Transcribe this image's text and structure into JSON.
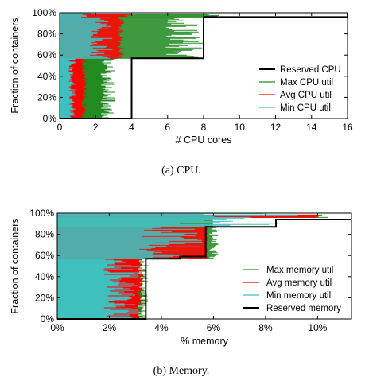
{
  "chart_data": [
    {
      "type": "line",
      "caption": "(a) CPU.",
      "xlabel": "# CPU cores",
      "ylabel": "Fraction of containers",
      "xlim": [
        0,
        16
      ],
      "ylim": [
        0,
        100
      ],
      "xticks": [
        0,
        2,
        4,
        6,
        8,
        10,
        12,
        14,
        16
      ],
      "xtick_labels": [
        "0",
        "2",
        "4",
        "6",
        "8",
        "10",
        "12",
        "14",
        "16"
      ],
      "yticks": [
        0,
        20,
        40,
        60,
        80,
        100
      ],
      "ytick_labels": [
        "0%",
        "20%",
        "40%",
        "60%",
        "80%",
        "100%"
      ],
      "legend_position": "lower-right",
      "legend": [
        "Reserved CPU",
        "Max CPU util",
        "Avg CPU util",
        "Min CPU util"
      ],
      "colors": {
        "reserved": "#000000",
        "max": "#228b22",
        "avg": "#ff0000",
        "min": "#40bfbf"
      },
      "series": [
        {
          "name": "Reserved CPU",
          "x": [
            0,
            4,
            4,
            8,
            8,
            16,
            16
          ],
          "y": [
            0,
            0,
            57,
            57,
            96,
            96,
            100
          ]
        },
        {
          "name": "Max CPU util",
          "segments": [
            {
              "y": [
                0,
                57
              ],
              "x_range": [
                1.2,
                3.1
              ]
            },
            {
              "y": [
                57,
                96
              ],
              "x_range": [
                3.3,
                8.0
              ]
            },
            {
              "y": [
                96,
                99
              ],
              "x_range": [
                4.0,
                11.8
              ]
            }
          ]
        },
        {
          "name": "Avg CPU util",
          "segments": [
            {
              "y": [
                0,
                57
              ],
              "x_range": [
                0.8,
                1.5
              ]
            },
            {
              "y": [
                57,
                96
              ],
              "x_range": [
                2.7,
                3.6
              ]
            },
            {
              "y": [
                96,
                99
              ],
              "x_range": [
                2.0,
                4.0
              ]
            }
          ]
        },
        {
          "name": "Min CPU util",
          "segments": [
            {
              "y": [
                0,
                57
              ],
              "x_range": [
                0.0,
                0.9
              ]
            },
            {
              "y": [
                57,
                96
              ],
              "x_range": [
                0.0,
                3.0
              ]
            },
            {
              "y": [
                96,
                100
              ],
              "x_range": [
                0.0,
                2.0
              ]
            }
          ]
        }
      ]
    },
    {
      "type": "line",
      "caption": "(b) Memory.",
      "xlabel": "% memory",
      "ylabel": "Fraction of containers",
      "xlim": [
        0,
        11.3
      ],
      "ylim": [
        0,
        100
      ],
      "xticks": [
        0,
        2,
        4,
        6,
        8,
        10
      ],
      "xtick_labels": [
        "0%",
        "2%",
        "4%",
        "6%",
        "8%",
        "10%"
      ],
      "yticks": [
        0,
        20,
        40,
        60,
        80,
        100
      ],
      "ytick_labels": [
        "0%",
        "20%",
        "40%",
        "60%",
        "80%",
        "100%"
      ],
      "legend_position": "lower-right",
      "legend": [
        "Max memory util",
        "Avg memory util",
        "Min memory util",
        "Reserved memory"
      ],
      "colors": {
        "reserved": "#000000",
        "max": "#228b22",
        "avg": "#ff0000",
        "min": "#40bfbf"
      },
      "series": [
        {
          "name": "Reserved memory",
          "x": [
            0,
            3.4,
            3.4,
            4.7,
            4.7,
            5.7,
            5.7,
            6.0,
            6.0,
            8.4,
            8.4,
            11.3
          ],
          "y": [
            0,
            0,
            57,
            57,
            59,
            59,
            87,
            87,
            87,
            87,
            94,
            94
          ]
        },
        {
          "name": "Max memory util",
          "segments": [
            {
              "y": [
                0,
                57
              ],
              "x_range": [
                2.6,
                3.5
              ]
            },
            {
              "y": [
                57,
                87
              ],
              "x_range": [
                5.4,
                6.2
              ]
            },
            {
              "y": [
                87,
                96
              ],
              "x_range": [
                5.8,
                6.0
              ]
            },
            {
              "y": [
                96,
                99
              ],
              "x_range": [
                9.5,
                10.4
              ]
            }
          ]
        },
        {
          "name": "Avg memory util",
          "segments": [
            {
              "y": [
                0,
                57
              ],
              "x_range": [
                2.8,
                3.3
              ]
            },
            {
              "y": [
                57,
                87
              ],
              "x_range": [
                5.6,
                5.8
              ]
            },
            {
              "y": [
                96,
                99
              ],
              "x_range": [
                9.6,
                10.2
              ]
            }
          ]
        },
        {
          "name": "Min memory util",
          "segments": [
            {
              "y": [
                0,
                57
              ],
              "x_range": [
                0.0,
                3.2
              ]
            },
            {
              "y": [
                57,
                87
              ],
              "x_range": [
                0.0,
                5.6
              ]
            },
            {
              "y": [
                87,
                96
              ],
              "x_range": [
                0.0,
                8.5
              ]
            },
            {
              "y": [
                96,
                100
              ],
              "x_range": [
                0.0,
                9.5
              ]
            }
          ]
        }
      ]
    }
  ]
}
